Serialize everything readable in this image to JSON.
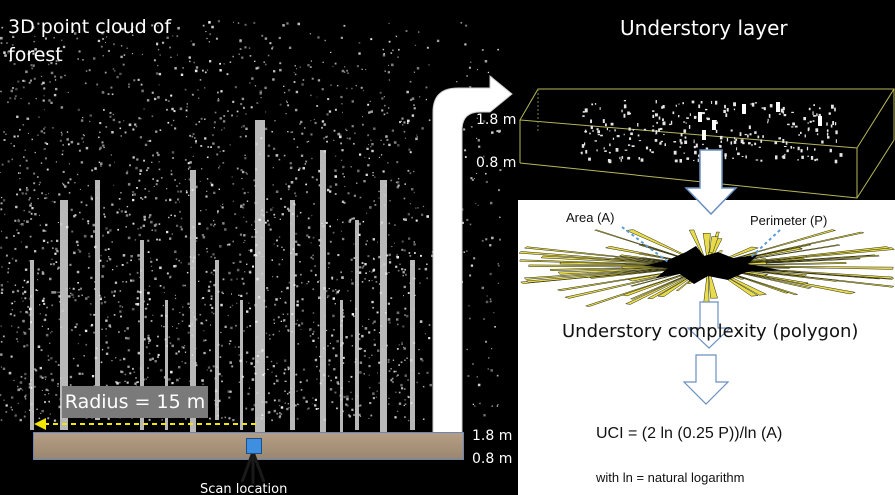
{
  "forest": {
    "title_line1": "3D point cloud of",
    "title_line2": "forest",
    "radius_label": "Radius = 15 m",
    "scan_label": "Scan location",
    "height_top": "1.8 m",
    "height_bottom": "0.8 m"
  },
  "understory": {
    "title": "Understory layer",
    "height_top": "1.8 m",
    "height_bottom": "0.8 m"
  },
  "polygon": {
    "area_label": "Area (A)",
    "perimeter_label": "Perimeter (P)",
    "caption": "Understory complexity (polygon)"
  },
  "formula": {
    "equation": "UCI = (2  ln (0.25  P))/ln (A)",
    "note": "with ln = natural logarithm"
  },
  "colors": {
    "arrow_white": "#ffffff",
    "radius_arrow": "#f2e600",
    "box_outline": "#b8b85a",
    "polygon_fill": "#000000",
    "polygon_rays": "#e8dc4a",
    "leader_lines": "#5b9bd5",
    "scan_marker": "#3f8fe0"
  }
}
